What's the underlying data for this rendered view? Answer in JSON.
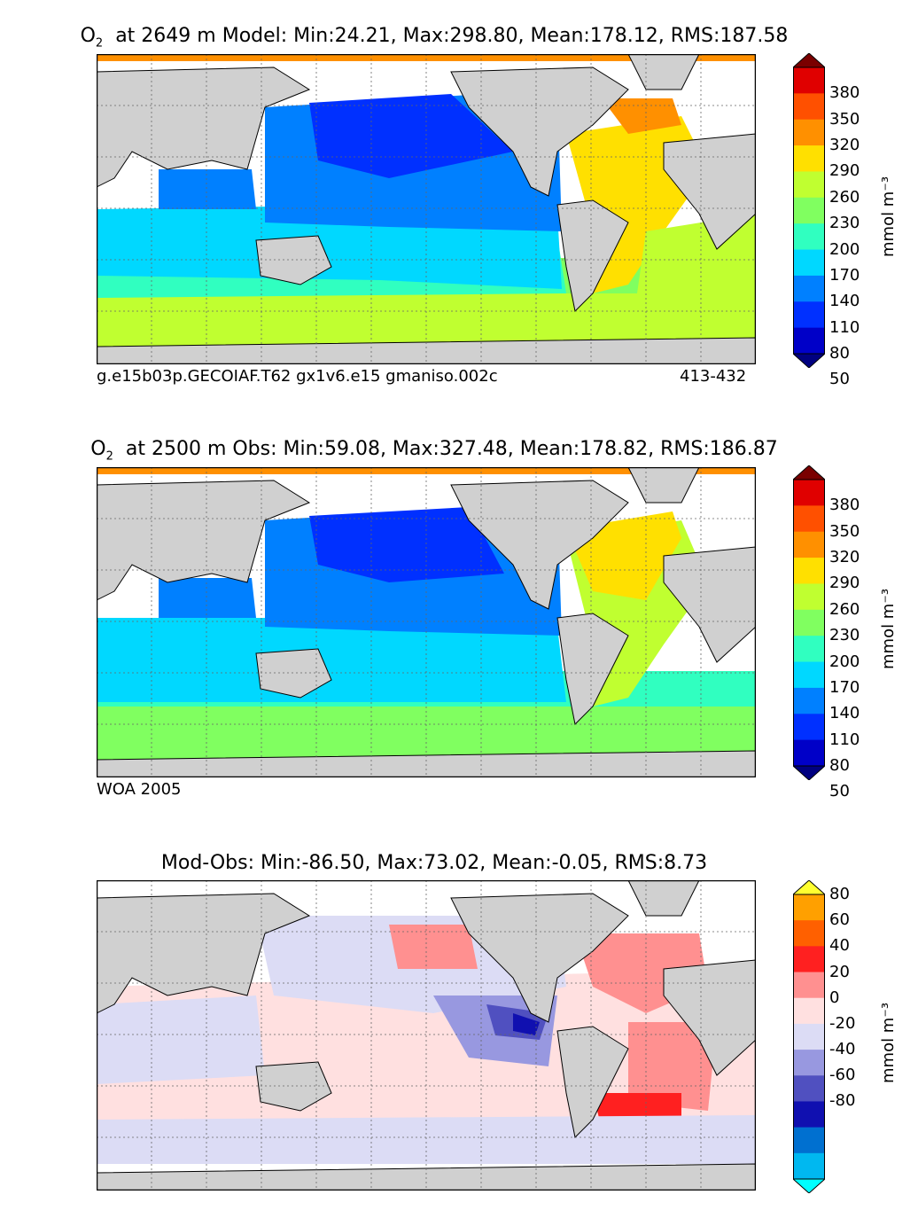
{
  "panels": [
    {
      "title_species": "O",
      "title_sub": "2",
      "title_rest": "at 2649 m Model: Min:24.21, Max:298.80, Mean:178.12, RMS:187.58",
      "caption_left": "g.e15b03p.GECOIAF.T62 gx1v6.e15 gmaniso.002c",
      "caption_right": "413-432"
    },
    {
      "title_species": "O",
      "title_sub": "2",
      "title_rest": "at 2500 m Obs: Min:59.08, Max:327.48, Mean:178.82, RMS:186.87",
      "caption_left": "WOA 2005",
      "caption_right": ""
    },
    {
      "title_full": "Mod-Obs: Min:-86.50, Max:73.02, Mean:-0.05, RMS:8.73"
    }
  ],
  "colorbars": [
    {
      "unit": "mmol m⁻³",
      "ticks": [
        "380",
        "350",
        "320",
        "290",
        "260",
        "230",
        "200",
        "170",
        "140",
        "110",
        "80",
        "50"
      ],
      "colors": [
        "#7a0000",
        "#e00000",
        "#ff5000",
        "#ff9000",
        "#ffe000",
        "#c0ff30",
        "#80ff60",
        "#30ffc0",
        "#00d8ff",
        "#0080ff",
        "#0030ff",
        "#0000c8",
        "#000080"
      ]
    },
    {
      "unit": "mmol m⁻³",
      "ticks": [
        "380",
        "350",
        "320",
        "290",
        "260",
        "230",
        "200",
        "170",
        "140",
        "110",
        "80",
        "50"
      ],
      "colors": [
        "#7a0000",
        "#e00000",
        "#ff5000",
        "#ff9000",
        "#ffe000",
        "#c0ff30",
        "#80ff60",
        "#30ffc0",
        "#00d8ff",
        "#0080ff",
        "#0030ff",
        "#0000c8",
        "#000080"
      ]
    },
    {
      "unit": "mmol m⁻³",
      "ticks": [
        "80",
        "60",
        "40",
        "20",
        "0",
        "-20",
        "-40",
        "-60",
        "-80"
      ],
      "colors": [
        "#ffff30",
        "#ffa000",
        "#ff6000",
        "#ff2020",
        "#ff9090",
        "#ffe0e0",
        "#dcdcf5",
        "#9898e0",
        "#5050c0",
        "#1010b0",
        "#0070d0",
        "#00b8f0",
        "#00ffff"
      ]
    }
  ],
  "style": {
    "land": "#d0d0d0",
    "coast": "#000000",
    "frame": "#000000"
  }
}
